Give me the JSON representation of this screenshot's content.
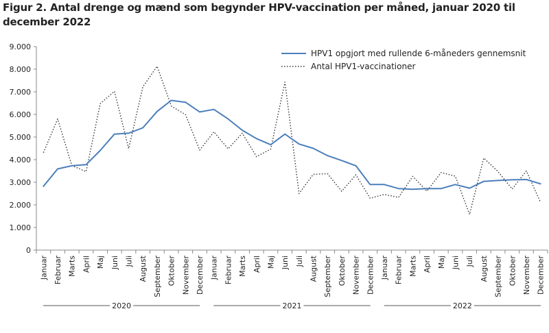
{
  "title": "Figur 2. Antal drenge og mænd som begynder HPV-vaccination per måned, januar 2020 til december 2022",
  "chart_data": {
    "type": "line",
    "categories": [
      "Januar",
      "Februar",
      "Marts",
      "April",
      "Maj",
      "Juni",
      "Juli",
      "August",
      "September",
      "Oktober",
      "November",
      "December",
      "Januar",
      "Februar",
      "Marts",
      "April",
      "Maj",
      "Juni",
      "Juli",
      "August",
      "September",
      "Oktober",
      "November",
      "December",
      "Januar",
      "Februar",
      "Marts",
      "April",
      "Maj",
      "Juni",
      "Juli",
      "August",
      "September",
      "Oktober",
      "November",
      "December"
    ],
    "year_groups": [
      {
        "label": "2020",
        "start": 0,
        "end": 11
      },
      {
        "label": "2021",
        "start": 12,
        "end": 23
      },
      {
        "label": "2022",
        "start": 24,
        "end": 35
      }
    ],
    "yticks": [
      "0",
      "1.000",
      "2.000",
      "3.000",
      "4.000",
      "5.000",
      "6.000",
      "7.000",
      "8.000",
      "9.000"
    ],
    "ylim": [
      0,
      9000
    ],
    "grid": false,
    "legend_position": "top-right",
    "series": [
      {
        "name": "HPV1 opgjort med rullende 6-måneders gennemsnit",
        "style": "solid",
        "color": "#4a7ebb",
        "values": [
          2820,
          3590,
          3730,
          3780,
          4410,
          5130,
          5170,
          5410,
          6130,
          6620,
          6540,
          6110,
          6220,
          5800,
          5300,
          4930,
          4660,
          5130,
          4690,
          4500,
          4180,
          3960,
          3730,
          2900,
          2900,
          2720,
          2690,
          2720,
          2720,
          2900,
          2740,
          3040,
          3080,
          3110,
          3120,
          2930
        ]
      },
      {
        "name": "Antal HPV1-vaccinationer",
        "style": "dotted",
        "color": "#333333",
        "values": [
          4310,
          5800,
          3740,
          3470,
          6480,
          7020,
          4490,
          7220,
          8130,
          6370,
          5990,
          4420,
          5230,
          4480,
          5170,
          4130,
          4470,
          7430,
          2500,
          3350,
          3380,
          2600,
          3330,
          2290,
          2460,
          2330,
          3260,
          2610,
          3430,
          3270,
          1580,
          4070,
          3480,
          2700,
          3500,
          2110
        ]
      }
    ]
  }
}
